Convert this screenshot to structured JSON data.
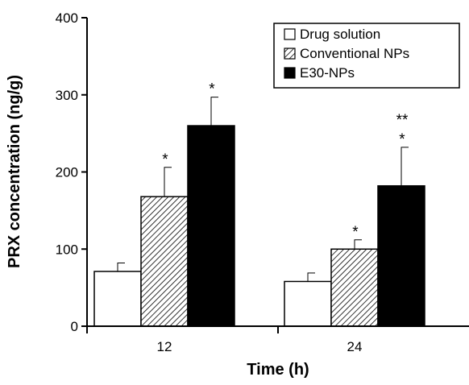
{
  "chart_data": {
    "type": "bar",
    "title": "",
    "xlabel": "Time (h)",
    "ylabel": "PRX concentration (ng/g)",
    "ylim": [
      0,
      400
    ],
    "yticks": [
      0,
      100,
      200,
      300,
      400
    ],
    "categories": [
      "12",
      "24"
    ],
    "grid": false,
    "legend_position": "top-right",
    "series": [
      {
        "name": "Drug solution",
        "pattern": "white",
        "values": [
          71,
          58
        ],
        "errors": [
          11,
          11
        ]
      },
      {
        "name": "Conventional NPs",
        "pattern": "hatched",
        "values": [
          168,
          100
        ],
        "errors": [
          38,
          12
        ]
      },
      {
        "name": "E30-NPs",
        "pattern": "black",
        "values": [
          260,
          182
        ],
        "errors": [
          37,
          50
        ]
      }
    ],
    "annotations": [
      {
        "category": 0,
        "series": 1,
        "text": "*"
      },
      {
        "category": 0,
        "series": 2,
        "text": "*"
      },
      {
        "category": 1,
        "series": 1,
        "text": "*"
      },
      {
        "category": 1,
        "series": 2,
        "text": "*"
      },
      {
        "category": 1,
        "series": 2,
        "text": "**"
      }
    ]
  }
}
